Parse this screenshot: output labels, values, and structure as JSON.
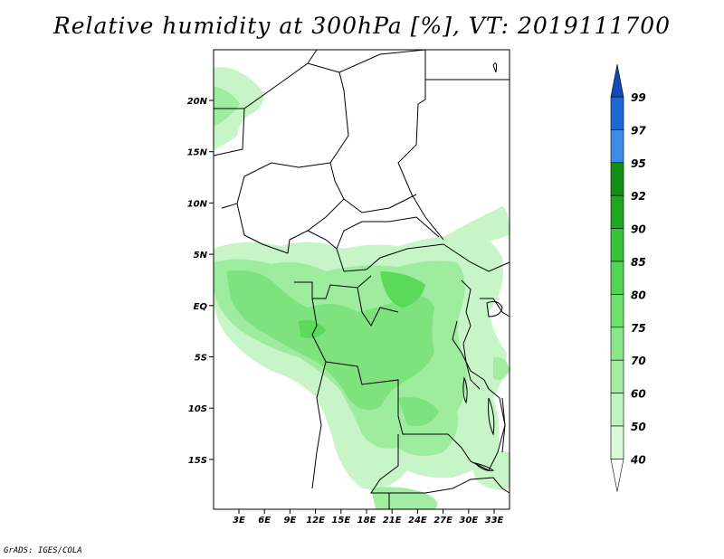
{
  "title": "Relative humidity at 300hPa [%], VT: 2019111700",
  "credit": "GrADS: IGES/COLA",
  "map": {
    "lat_labels": [
      "20N",
      "15N",
      "10N",
      "5N",
      "EQ",
      "5S",
      "10S",
      "15S"
    ],
    "lon_labels": [
      "3E",
      "6E",
      "9E",
      "12E",
      "15E",
      "18E",
      "21E",
      "24E",
      "27E",
      "30E",
      "33E"
    ],
    "land_color": "#ffffff",
    "border_color": "#000000"
  },
  "colorbar": {
    "labels": [
      "40",
      "50",
      "60",
      "70",
      "75",
      "80",
      "85",
      "90",
      "92",
      "95",
      "97",
      "99"
    ],
    "colors": [
      "#f0fff0",
      "#d7f9d7",
      "#bff3bf",
      "#a3eda3",
      "#88e788",
      "#6ee06e",
      "#52d552",
      "#36c336",
      "#1fa81f",
      "#138d13",
      "#3a8ce8",
      "#1f66d6",
      "#1449b8"
    ],
    "orientation": "vertical"
  }
}
